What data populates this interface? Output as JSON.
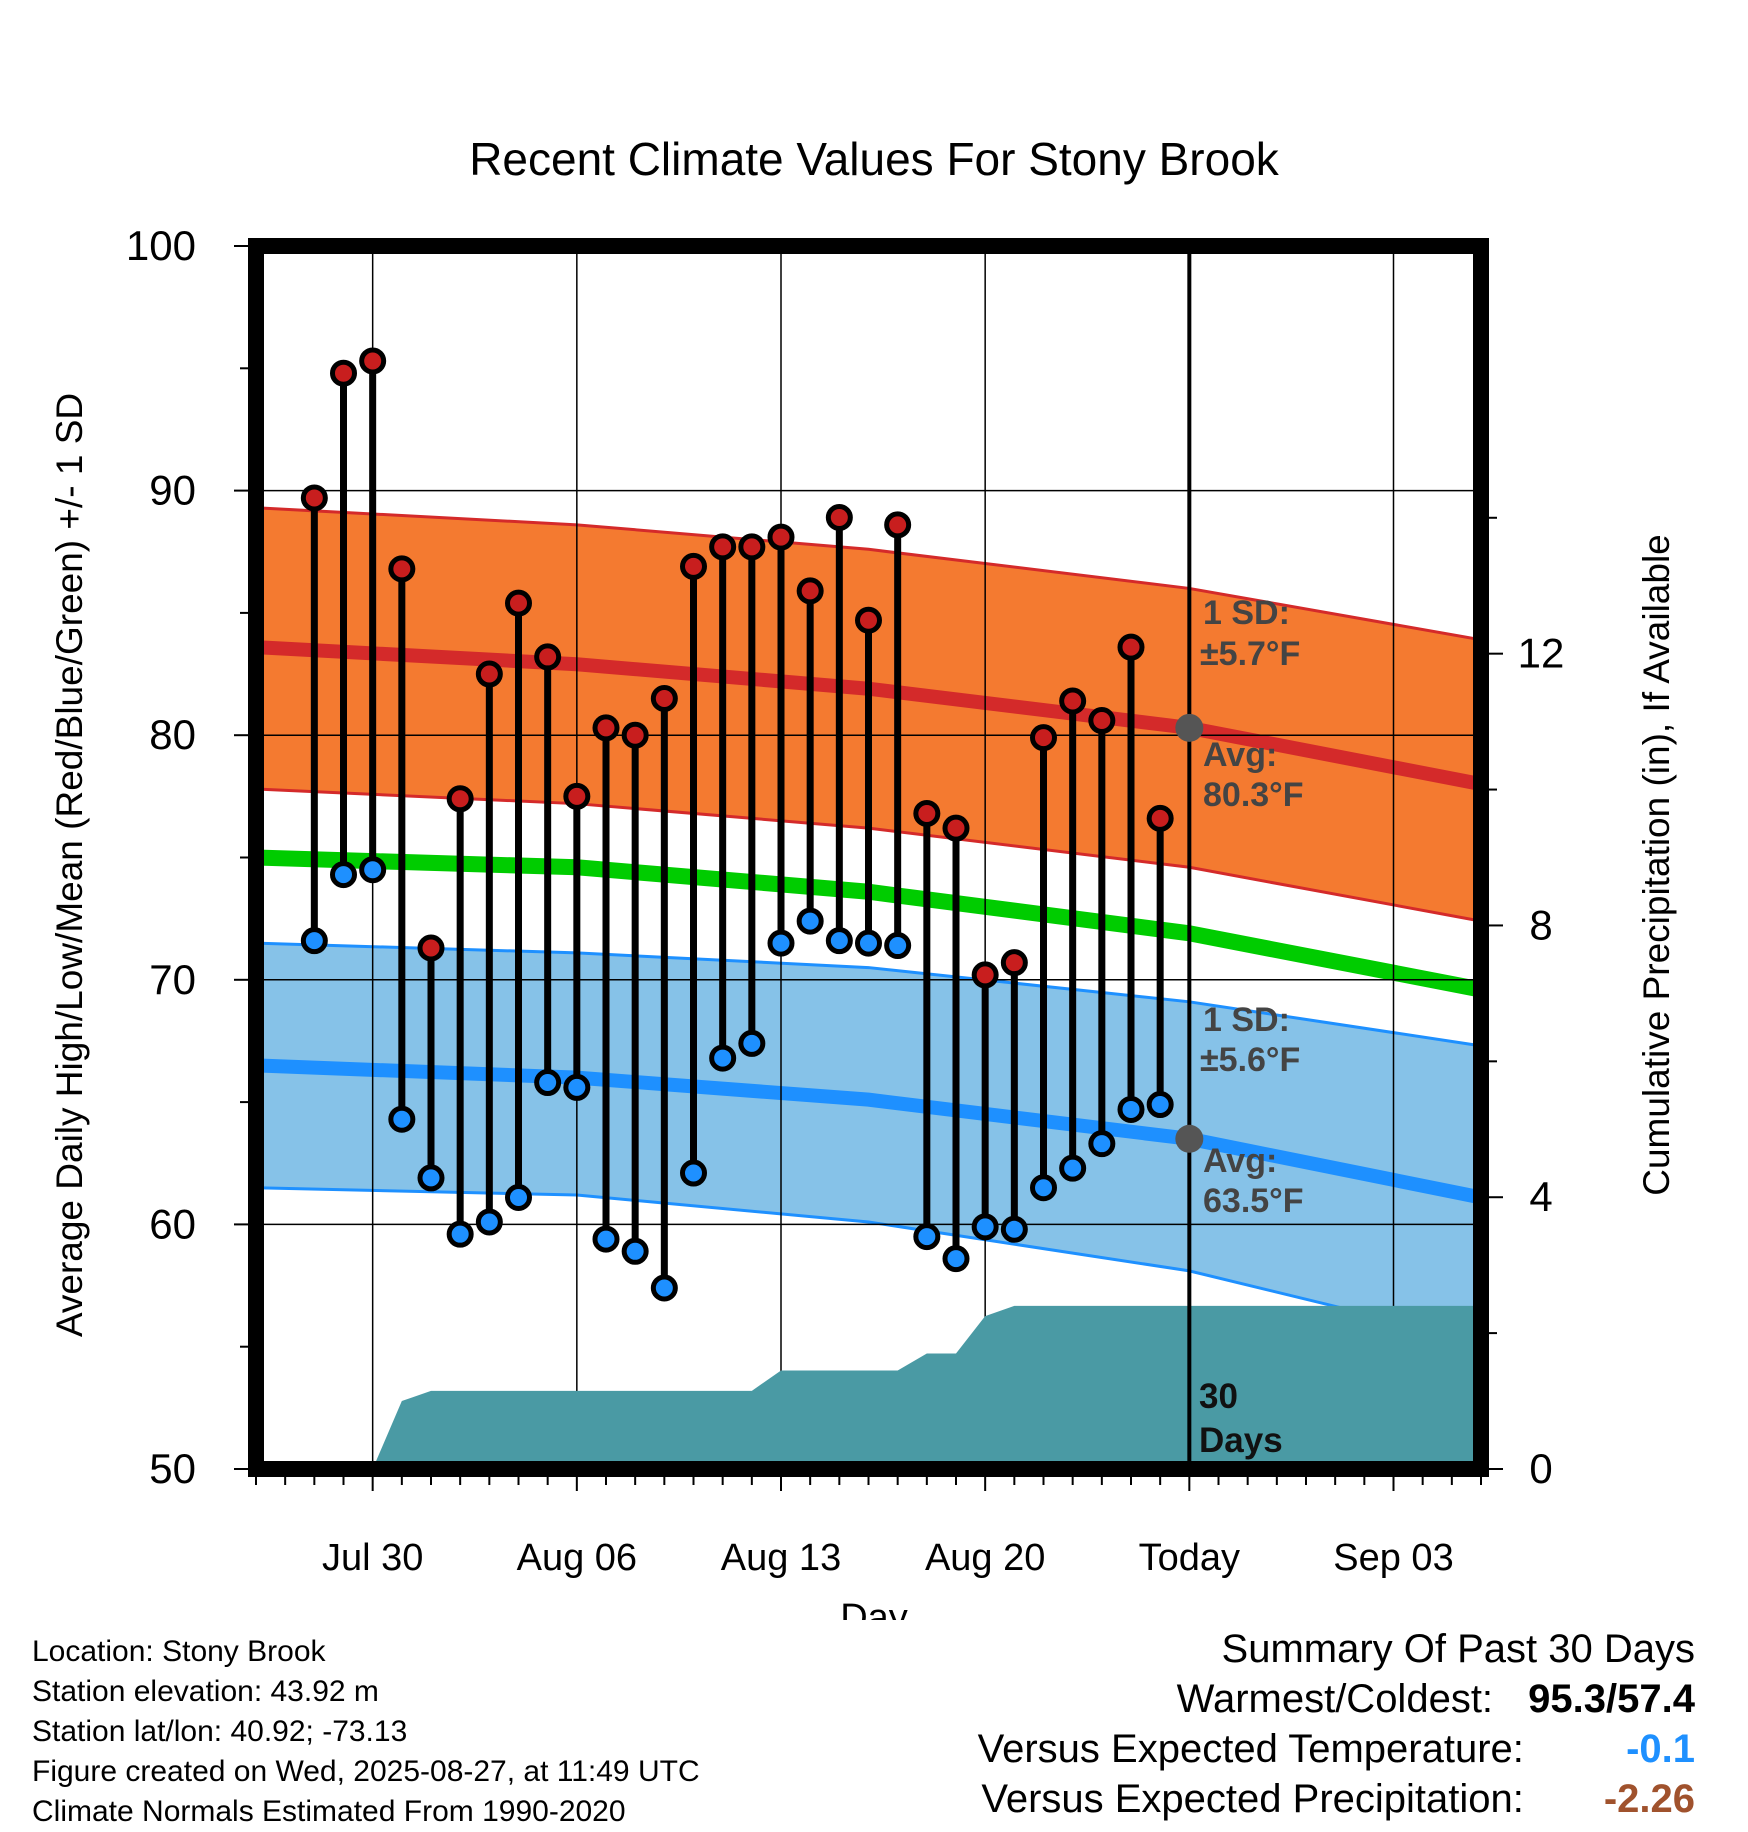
{
  "chart_data": {
    "type": "line",
    "title": "Recent Climate Values For Stony Brook",
    "xlabel": "Day",
    "ylabel": "Average Daily High/Low/Mean (Red/Blue/Green) +/- 1 SD",
    "y2label": "Cumulative Precipitation (in), If Available",
    "ylim": [
      50,
      100
    ],
    "y2lim": [
      0,
      18
    ],
    "yticks": [
      50,
      60,
      70,
      80,
      90,
      100
    ],
    "y2ticks": [
      0,
      4,
      8,
      12
    ],
    "xlim": [
      "2025-07-26",
      "2025-09-06"
    ],
    "xticks": [
      {
        "date": "2025-07-30",
        "label": "Jul 30"
      },
      {
        "date": "2025-08-06",
        "label": "Aug 06"
      },
      {
        "date": "2025-08-13",
        "label": "Aug 13"
      },
      {
        "date": "2025-08-20",
        "label": "Aug 20"
      },
      {
        "date": "2025-08-27",
        "label": "Today"
      },
      {
        "date": "2025-09-03",
        "label": "Sep 03"
      }
    ],
    "grid": true,
    "today": "2025-08-27",
    "observed": {
      "dates": [
        "2025-07-28",
        "2025-07-29",
        "2025-07-30",
        "2025-07-31",
        "2025-08-01",
        "2025-08-02",
        "2025-08-03",
        "2025-08-04",
        "2025-08-05",
        "2025-08-06",
        "2025-08-07",
        "2025-08-08",
        "2025-08-09",
        "2025-08-10",
        "2025-08-11",
        "2025-08-12",
        "2025-08-13",
        "2025-08-14",
        "2025-08-15",
        "2025-08-16",
        "2025-08-17",
        "2025-08-18",
        "2025-08-19",
        "2025-08-20",
        "2025-08-21",
        "2025-08-22",
        "2025-08-23",
        "2025-08-24",
        "2025-08-25",
        "2025-08-26"
      ],
      "highs": [
        89.7,
        94.8,
        95.3,
        86.8,
        71.3,
        77.4,
        82.5,
        85.4,
        83.2,
        77.5,
        80.3,
        80.0,
        81.5,
        86.9,
        87.7,
        87.7,
        88.1,
        85.9,
        88.9,
        84.7,
        88.6,
        76.8,
        76.2,
        70.2,
        70.7,
        79.9,
        81.4,
        80.6,
        83.6,
        76.6
      ],
      "lows": [
        71.6,
        74.3,
        74.5,
        64.3,
        61.9,
        59.6,
        60.1,
        61.1,
        65.8,
        65.6,
        59.4,
        58.9,
        57.4,
        62.1,
        66.8,
        67.4,
        71.5,
        72.4,
        71.6,
        71.5,
        71.4,
        59.5,
        58.6,
        59.9,
        59.8,
        61.5,
        62.3,
        63.3,
        64.7,
        64.9
      ],
      "high_color": "#c81e1e",
      "low_color": "#1e90ff"
    },
    "normals": {
      "dates": [
        "2025-07-26",
        "2025-08-06",
        "2025-08-16",
        "2025-08-27",
        "2025-09-06"
      ],
      "high": [
        83.6,
        82.9,
        81.9,
        80.3,
        78.0
      ],
      "high_upper": [
        89.3,
        88.6,
        87.6,
        86.0,
        83.9
      ],
      "high_lower": [
        77.8,
        77.2,
        76.2,
        74.6,
        72.4
      ],
      "low": [
        66.5,
        66.0,
        65.1,
        63.5,
        61.1
      ],
      "low_upper": [
        71.5,
        71.1,
        70.5,
        69.1,
        67.3
      ],
      "low_lower": [
        61.5,
        61.2,
        60.1,
        58.1,
        55.2
      ],
      "mean": [
        75.0,
        74.6,
        73.6,
        71.9,
        69.6
      ],
      "high_band_color": "#f47a30",
      "high_line_color": "#d42a2a",
      "low_band_color": "#86c2e8",
      "low_line_color": "#1e90ff",
      "mean_color": "#00cc00"
    },
    "precip": {
      "dates": [
        "2025-07-26",
        "2025-07-30",
        "2025-07-31",
        "2025-08-01",
        "2025-08-02",
        "2025-08-12",
        "2025-08-13",
        "2025-08-17",
        "2025-08-18",
        "2025-08-19",
        "2025-08-20",
        "2025-08-21",
        "2025-09-06"
      ],
      "values": [
        0,
        0,
        1.0,
        1.15,
        1.15,
        1.15,
        1.45,
        1.45,
        1.7,
        1.7,
        2.25,
        2.4,
        2.4
      ],
      "color": "#4a9aa4"
    },
    "annotations": {
      "high_sd": "1 SD:",
      "high_sd_val": "±5.7°F",
      "high_avg": "Avg:",
      "high_avg_val": "80.3°F",
      "low_sd": "1 SD:",
      "low_sd_val": "±5.6°F",
      "low_avg": "Avg:",
      "low_avg_val": "63.5°F",
      "precip_label_1": "30",
      "precip_label_2": "Days"
    }
  },
  "footer": {
    "location": "Location: Stony Brook",
    "elevation": "Station elevation: 43.92 m",
    "latlon": "Station lat/lon: 40.92; -73.13",
    "created": "Figure created on Wed, 2025-08-27, at 11:49 UTC",
    "normals": "Climate Normals Estimated From 1990-2020"
  },
  "summary": {
    "title": "Summary Of Past 30 Days",
    "warmest_label": "Warmest/Coldest:",
    "warmest_value": "95.3/57.4",
    "temp_label": "Versus Expected Temperature:",
    "temp_value": "-0.1",
    "temp_color": "#1e90ff",
    "precip_label": "Versus Expected Precipitation:",
    "precip_value": "-2.26",
    "precip_color": "#a0522d"
  }
}
